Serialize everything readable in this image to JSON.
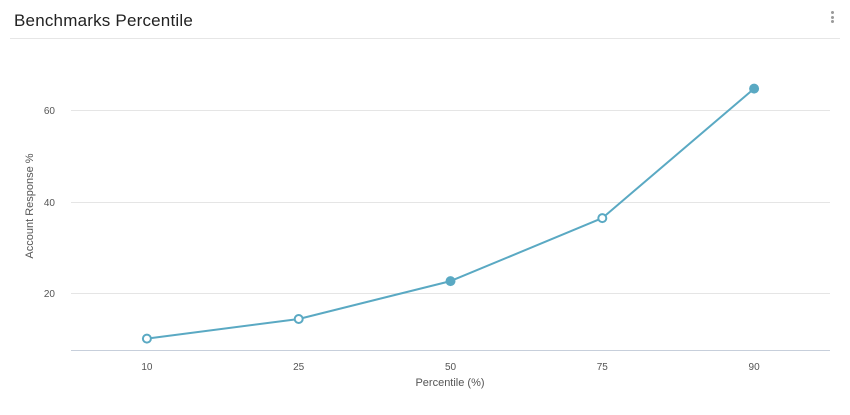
{
  "widget": {
    "title": "Benchmarks Percentile",
    "menu_icon": "more-vertical-icon"
  },
  "colors": {
    "line": "#5aa9c3",
    "grid": "#e5e5e5",
    "axis": "#c7cfdb"
  },
  "chart_data": {
    "type": "line",
    "title": "Benchmarks Percentile",
    "xlabel": "Percentile (%)",
    "ylabel": "Account Response %",
    "categories": [
      "10",
      "25",
      "50",
      "75",
      "90"
    ],
    "series": [
      {
        "values": [
          10,
          14.3,
          22.6,
          36.4,
          64.8
        ],
        "marker_filled": [
          false,
          false,
          true,
          false,
          true
        ]
      }
    ],
    "yticks": [
      20,
      40,
      60
    ],
    "ylim": [
      7.5,
      71.5
    ],
    "grid": true,
    "legend": "none"
  }
}
